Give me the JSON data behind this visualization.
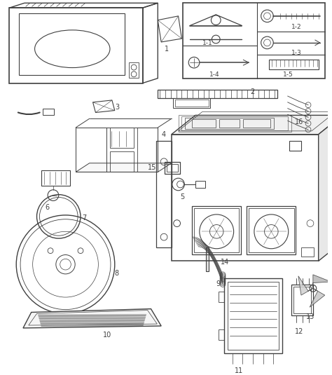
{
  "bg_color": "#ffffff",
  "line_color": "#404040",
  "fig_width": 4.74,
  "fig_height": 5.35,
  "dpi": 100
}
